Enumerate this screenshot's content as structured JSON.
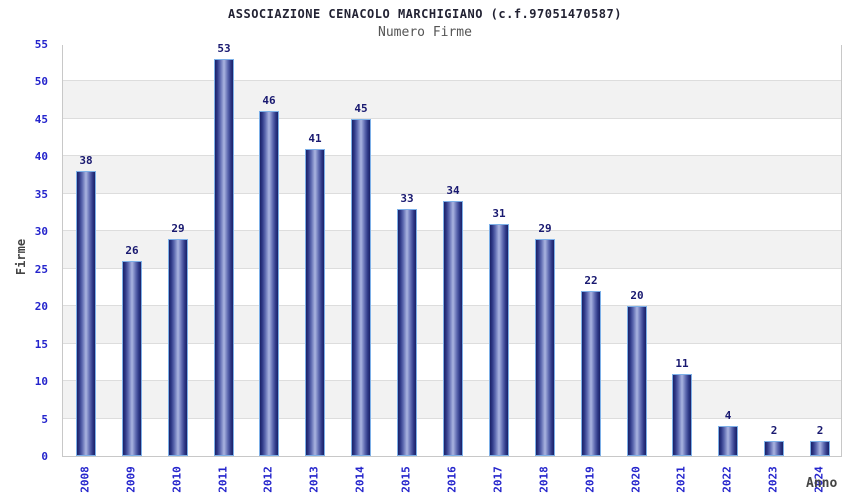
{
  "chart_data": {
    "type": "bar",
    "title": "ASSOCIAZIONE CENACOLO MARCHIGIANO (c.f.97051470587)",
    "subtitle": "Numero Firme",
    "xlabel": "Anno",
    "ylabel": "Firme",
    "categories": [
      "2008",
      "2009",
      "2010",
      "2011",
      "2012",
      "2013",
      "2014",
      "2015",
      "2016",
      "2017",
      "2018",
      "2019",
      "2020",
      "2021",
      "2022",
      "2023",
      "2024"
    ],
    "values": [
      38,
      26,
      29,
      53,
      46,
      41,
      45,
      33,
      34,
      31,
      29,
      22,
      20,
      11,
      4,
      2,
      2
    ],
    "ylim": [
      0,
      55
    ],
    "ytick_step": 5,
    "yticks": [
      0,
      5,
      10,
      15,
      20,
      25,
      30,
      35,
      40,
      45,
      50,
      55
    ],
    "legend": "none",
    "grid": "horizontal-bands",
    "bar_labels": "above-bar",
    "colors": {
      "bar_dark": "#1b2168",
      "bar_light": "#aab4de",
      "bar_border": "#7db0e8",
      "tick_label": "#2424cc",
      "value_label": "#191970",
      "title": "#222233",
      "subtitle": "#555555",
      "axis_label": "#444444",
      "band_gray": "#f2f2f2",
      "band_white": "#ffffff",
      "gridline": "#dddddd",
      "plot_border": "#c8c8c8"
    }
  }
}
